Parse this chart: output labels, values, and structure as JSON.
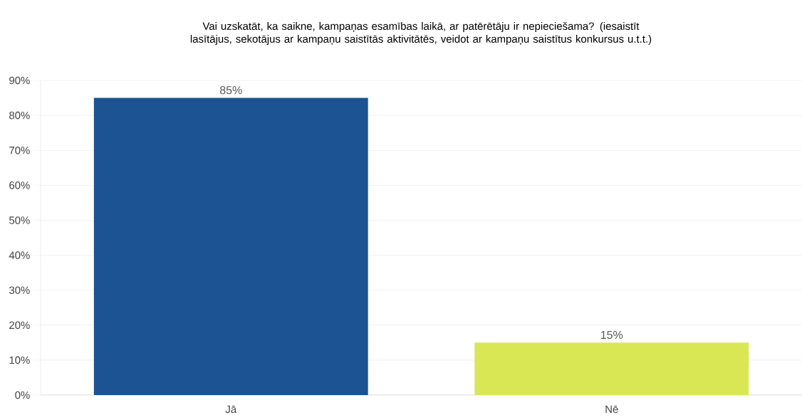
{
  "chart_data": {
    "type": "bar",
    "title": "Vai uzskatāt, ka saikne, kampaņas esamības laikā, ar patērētāju ir nepieciešama? (iesaistīt lasītājus, sekotājus ar kampaņu saistītās aktivitātēs, veidot ar kampaņu saistītus konkursus u.t.t.)",
    "categories": [
      "Jā",
      "Nē"
    ],
    "values": [
      85,
      15
    ],
    "value_labels": [
      "85%",
      "15%"
    ],
    "colors": [
      "#1b5393",
      "#d9e755"
    ],
    "ylim": [
      0,
      90
    ],
    "yticks": [
      {
        "value": 0,
        "label": "0%"
      },
      {
        "value": 10,
        "label": "10%"
      },
      {
        "value": 20,
        "label": "20%"
      },
      {
        "value": 30,
        "label": "30%"
      },
      {
        "value": 40,
        "label": "40%"
      },
      {
        "value": 50,
        "label": "50%"
      },
      {
        "value": 60,
        "label": "60%"
      },
      {
        "value": 70,
        "label": "70%"
      },
      {
        "value": 80,
        "label": "80%"
      },
      {
        "value": 90,
        "label": "90%"
      }
    ],
    "grid": "y"
  }
}
